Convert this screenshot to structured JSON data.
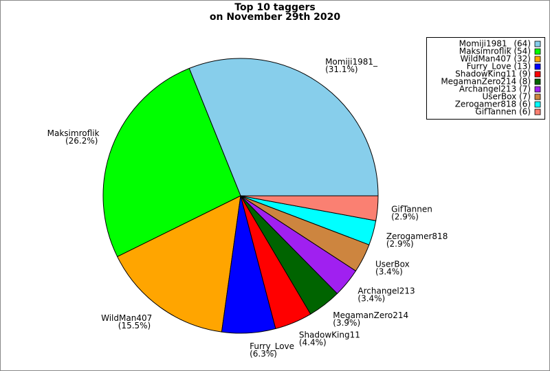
{
  "chart_data": {
    "type": "pie",
    "title": "Top 10 taggers",
    "subtitle": "on November 29th 2020",
    "categories": [
      "Momiji1981_",
      "Maksimroflik",
      "WildMan407",
      "Furry_Love",
      "ShadowKing11",
      "MegamanZero214",
      "Archangel213",
      "UserBox",
      "Zerogamer818",
      "GifTannen"
    ],
    "values": [
      31.1,
      26.2,
      15.5,
      6.3,
      4.4,
      3.9,
      3.4,
      3.4,
      2.9,
      2.9
    ],
    "value_labels": [
      "(31.1%)",
      "(26.2%)",
      "(15.5%)",
      "(6.3%)",
      "(4.4%)",
      "(3.9%)",
      "(3.4%)",
      "(3.4%)",
      "(2.9%)",
      "(2.9%)"
    ],
    "legend_labels": [
      "Momiji1981_ (64)",
      "Maksimroflik (54)",
      "WildMan407 (32)",
      "Furry_Love (13)",
      "ShadowKing11 (9)",
      "MegamanZero214 (8)",
      "Archangel213 (7)",
      "UserBox (7)",
      "Zerogamer818 (6)",
      "GifTannen (6)"
    ],
    "colors": [
      "#87ceeb",
      "#00ff00",
      "#ffa500",
      "#0000ff",
      "#ff0000",
      "#006400",
      "#a020f0",
      "#cd853f",
      "#00ffff",
      "#fa8072"
    ],
    "legend": "upper right"
  }
}
